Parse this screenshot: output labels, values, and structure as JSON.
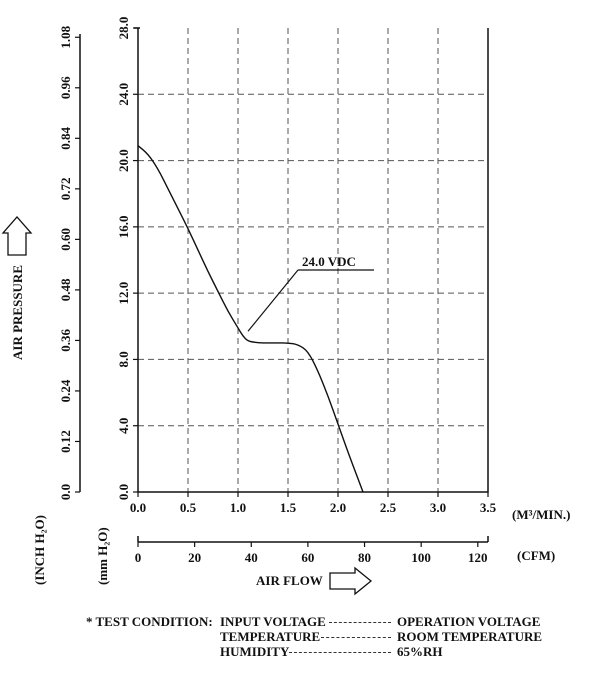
{
  "chart_data": {
    "type": "line",
    "series": [
      {
        "name": "24.0 VDC",
        "x": [
          0.0,
          0.1,
          0.2,
          0.3,
          0.4,
          0.5,
          0.6,
          0.7,
          0.8,
          0.9,
          1.0,
          1.05,
          1.1,
          1.2,
          1.3,
          1.4,
          1.5,
          1.6,
          1.7,
          1.8,
          1.9,
          2.0,
          2.1,
          2.2,
          2.25
        ],
        "y": [
          20.9,
          20.4,
          19.5,
          18.3,
          17.1,
          15.9,
          14.6,
          13.3,
          12.1,
          10.9,
          9.9,
          9.4,
          9.1,
          9.0,
          9.0,
          9.0,
          9.0,
          8.9,
          8.5,
          7.3,
          5.8,
          4.1,
          2.4,
          0.8,
          0.0
        ]
      }
    ],
    "x_axis": {
      "unit": "(M³/MIN.)",
      "ticks": [
        "0.0",
        "0.5",
        "1.0",
        "1.5",
        "2.0",
        "2.5",
        "3.0",
        "3.5"
      ],
      "range": [
        0.0,
        3.5
      ]
    },
    "x_axis_secondary": {
      "unit": "(CFM)",
      "ticks": [
        "0",
        "20",
        "40",
        "60",
        "80",
        "100",
        "120"
      ],
      "range": [
        0,
        123.6
      ]
    },
    "y_axis": {
      "unit": "(mm H₂O)",
      "ticks": [
        "0.0",
        "4.0",
        "8.0",
        "12.0",
        "16.0",
        "20.0",
        "24.0",
        "28.0"
      ],
      "range": [
        0.0,
        28.0
      ]
    },
    "y_axis_secondary": {
      "unit": "(INCH H₂O)",
      "ticks": [
        "0.0",
        "0.12",
        "0.24",
        "0.36",
        "0.48",
        "0.60",
        "0.72",
        "0.84",
        "0.96",
        "1.08"
      ],
      "range": [
        0.0,
        1.102
      ]
    },
    "xlabel": "AIR FLOW",
    "ylabel": "AIR PRESSURE",
    "annotation": "24.0 VDC",
    "grid": true
  },
  "test_condition": {
    "prefix": "* TEST CONDITION:",
    "rows": [
      {
        "item": "INPUT VOLTAGE",
        "value": "OPERATION VOLTAGE"
      },
      {
        "item": "TEMPERATURE",
        "value": "ROOM TEMPERATURE"
      },
      {
        "item": "HUMIDITY",
        "value": "65%RH"
      }
    ]
  }
}
